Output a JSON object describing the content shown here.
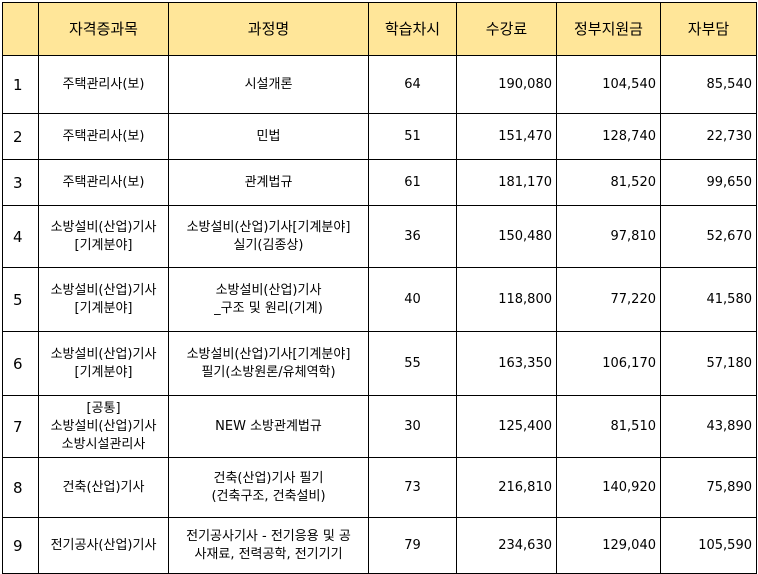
{
  "table": {
    "headers": [
      "",
      "자격증과목",
      "과정명",
      "학습차시",
      "수강료",
      "정부지원금",
      "자부담"
    ],
    "rows": [
      {
        "no": "1",
        "subject": "주택관리사(보)",
        "course": "시설개론",
        "hours": "64",
        "fee": "190,080",
        "subsidy": "104,540",
        "self_pay": "85,540"
      },
      {
        "no": "2",
        "subject": "주택관리사(보)",
        "course": "민법",
        "hours": "51",
        "fee": "151,470",
        "subsidy": "128,740",
        "self_pay": "22,730"
      },
      {
        "no": "3",
        "subject": "주택관리사(보)",
        "course": "관계법규",
        "hours": "61",
        "fee": "181,170",
        "subsidy": "81,520",
        "self_pay": "99,650"
      },
      {
        "no": "4",
        "subject": "소방설비(산업)기사\n[기계분야]",
        "course": "소방설비(산업)기사[기계분야]\n실기(김종상)",
        "hours": "36",
        "fee": "150,480",
        "subsidy": "97,810",
        "self_pay": "52,670"
      },
      {
        "no": "5",
        "subject": "소방설비(산업)기사\n[기계분야]",
        "course": "소방설비(산업)기사\n_구조 및 원리(기계)",
        "hours": "40",
        "fee": "118,800",
        "subsidy": "77,220",
        "self_pay": "41,580"
      },
      {
        "no": "6",
        "subject": "소방설비(산업)기사\n[기계분야]",
        "course": "소방설비(산업)기사[기계분야]\n필기(소방원론/유체역학)",
        "hours": "55",
        "fee": "163,350",
        "subsidy": "106,170",
        "self_pay": "57,180"
      },
      {
        "no": "7",
        "subject": "[공통]\n소방설비(산업)기사\n소방시설관리사",
        "course": "NEW 소방관계법규",
        "hours": "30",
        "fee": "125,400",
        "subsidy": "81,510",
        "self_pay": "43,890"
      },
      {
        "no": "8",
        "subject": "건축(산업)기사",
        "course": "건축(산업)기사 필기\n(건축구조, 건축설비)",
        "hours": "73",
        "fee": "216,810",
        "subsidy": "140,920",
        "self_pay": "75,890"
      },
      {
        "no": "9",
        "subject": "전기공사(산업)기사",
        "course": "전기공사기사 - 전기응용 및 공\n사재료, 전력공학, 전기기기",
        "hours": "79",
        "fee": "234,630",
        "subsidy": "129,040",
        "self_pay": "105,590"
      }
    ]
  },
  "colors": {
    "header_bg": "#ffe699",
    "border": "#000000"
  }
}
